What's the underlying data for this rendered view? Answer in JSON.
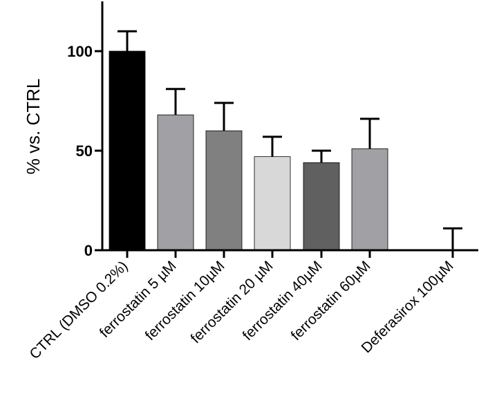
{
  "chart_data": {
    "type": "bar",
    "title": "",
    "xlabel": "",
    "ylabel": "%  vs. CTRL",
    "ylim": [
      0,
      125
    ],
    "yticks": [
      0,
      50,
      100
    ],
    "grid": false,
    "legend": "none",
    "categories": [
      "CTRL (DMSO 0.2%)",
      "ferrostatin 5 µM",
      "ferrostatin 10µM",
      "ferrostatin 20 µM",
      "ferrostatin 40µM",
      "ferrostatin 60µM",
      "Deferasirox 100µM"
    ],
    "values": [
      100,
      68,
      60,
      47,
      44,
      51,
      0
    ],
    "errors": [
      10,
      13,
      14,
      10,
      6,
      15,
      11
    ],
    "colors": [
      "#000000",
      "#a0a0a5",
      "#808080",
      "#d8d8d8",
      "#606060",
      "#a0a0a5",
      "#a0a0a5"
    ]
  }
}
